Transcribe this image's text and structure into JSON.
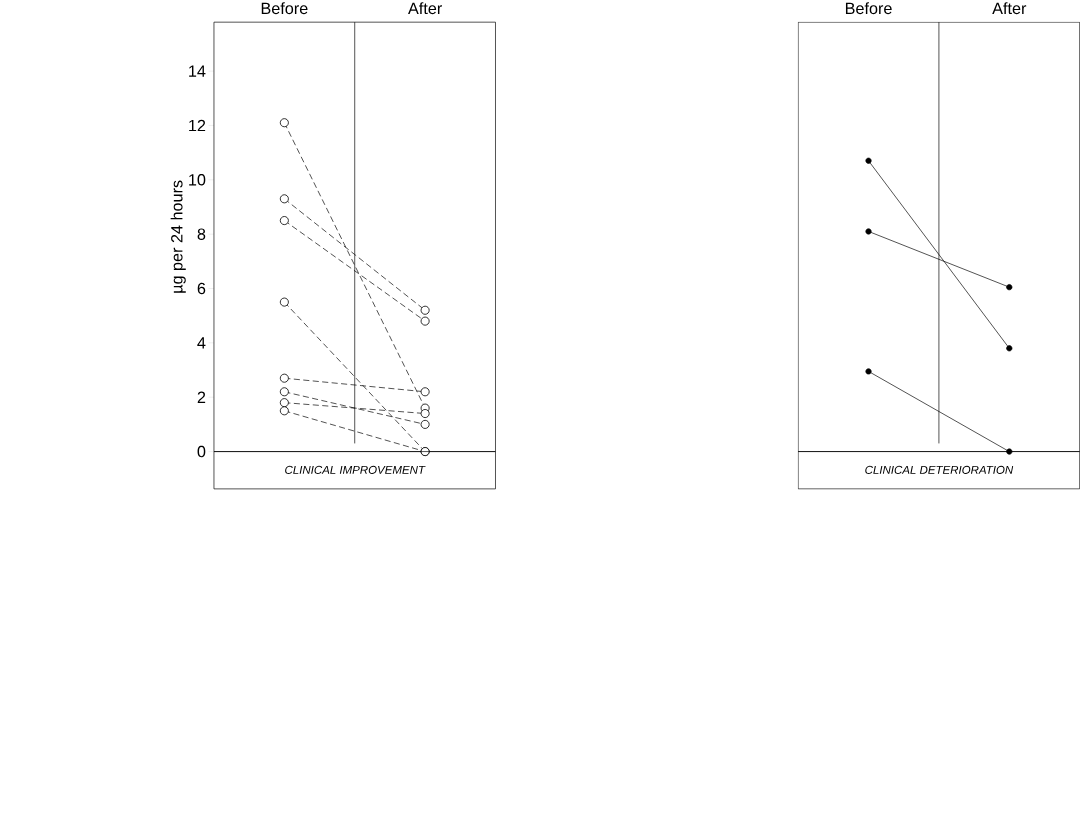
{
  "chart_data": [
    {
      "type": "line",
      "categories": [
        "Before",
        "After"
      ],
      "xlabel": "CLINICAL IMPROVEMENT",
      "ylabel": "µg per 24 hours",
      "ylim": [
        0,
        15.8
      ],
      "yticks": [
        0,
        2,
        4,
        6,
        8,
        10,
        12,
        14
      ],
      "marker": "circle",
      "line_style": "dashed",
      "series": [
        {
          "color": "#000000",
          "values": [
            12.1,
            1.6
          ]
        },
        {
          "color": "#000000",
          "values": [
            9.3,
            5.2
          ]
        },
        {
          "color": "#000000",
          "values": [
            8.5,
            4.8
          ]
        },
        {
          "color": "#000000",
          "values": [
            5.5,
            0
          ]
        },
        {
          "color": "#000000",
          "values": [
            2.7,
            2.2
          ]
        },
        {
          "color": "#000000",
          "values": [
            2.2,
            1.0
          ]
        },
        {
          "color": "#000000",
          "values": [
            1.8,
            1.4
          ]
        },
        {
          "color": "#000000",
          "values": [
            1.5,
            0
          ]
        }
      ]
    },
    {
      "type": "line",
      "categories": [
        "Before",
        "After"
      ],
      "xlabel": "CLINICAL DETERIORATION",
      "ylim": [
        0,
        15.8
      ],
      "tick_labels": "x",
      "marker": "circle",
      "line_style": "solid",
      "series": [
        {
          "color": "#000000",
          "values": [
            10.7,
            3.8
          ]
        },
        {
          "color": "#000000",
          "values": [
            8.1,
            6.05
          ]
        },
        {
          "color": "#000000",
          "values": [
            2.95,
            0
          ]
        }
      ]
    }
  ]
}
